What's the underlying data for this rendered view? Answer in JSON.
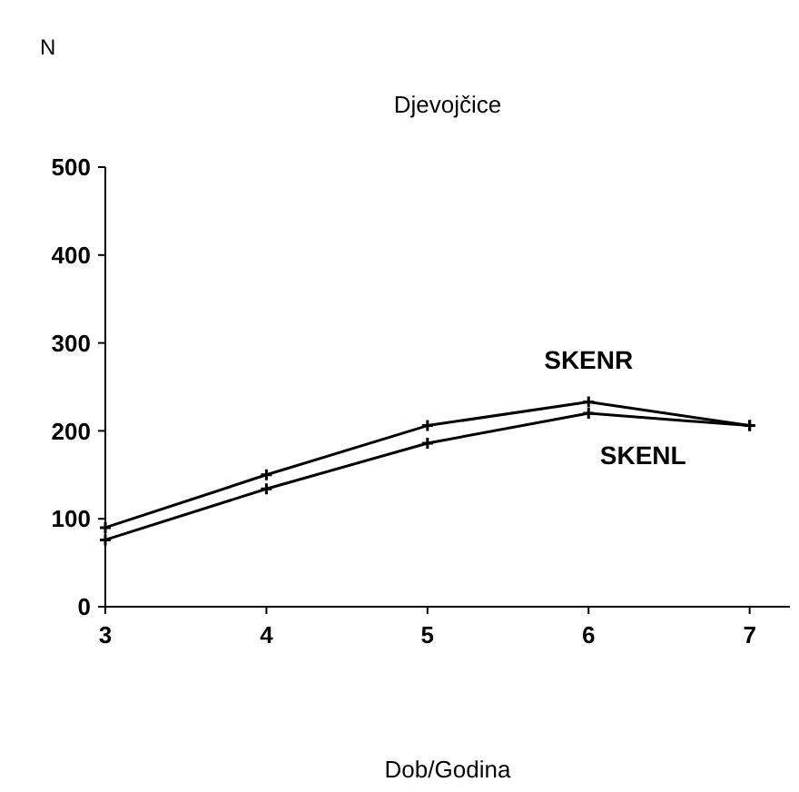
{
  "chart_data": {
    "type": "line",
    "title": "Djevojčice",
    "annotations": [
      "N",
      "Dob/Godina"
    ],
    "x": [
      3,
      4,
      5,
      6,
      7
    ],
    "xlim": [
      3,
      7.25
    ],
    "xticks": [
      3,
      4,
      5,
      6,
      7
    ],
    "ylim": [
      0,
      500
    ],
    "yticks": [
      0,
      100,
      200,
      300,
      400,
      500
    ],
    "series": [
      {
        "name": "SKENR",
        "color": "#000000",
        "values": [
          90,
          150,
          206,
          233,
          206
        ]
      },
      {
        "name": "SKENL",
        "color": "#000000",
        "values": [
          76,
          134,
          186,
          220,
          206
        ]
      }
    ],
    "marker": "cross",
    "line_style": "solid",
    "grid": false
  }
}
